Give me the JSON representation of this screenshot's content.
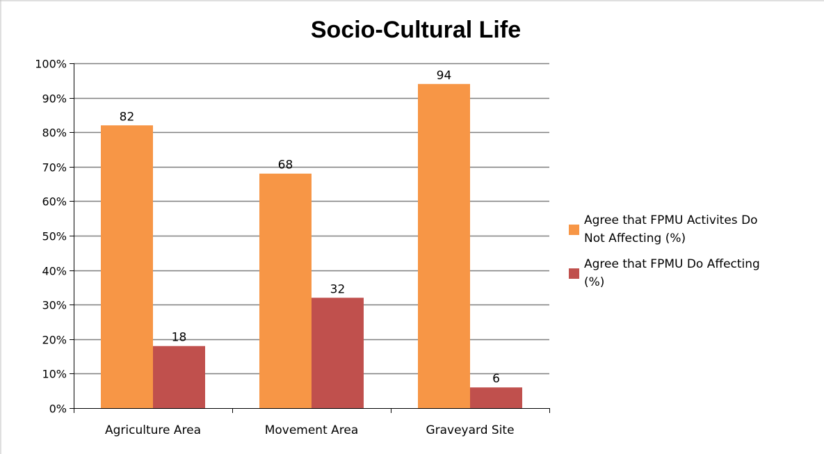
{
  "chart_data": {
    "type": "bar",
    "title": "Socio-Cultural Life",
    "xlabel": "",
    "ylabel": "",
    "categories": [
      "Agriculture Area",
      "Movement Area",
      "Graveyard Site"
    ],
    "series": [
      {
        "name": "Agree that FPMU Activites Do Not Affecting (%)",
        "legend_lines": [
          "Agree that FPMU Activites Do",
          "Not Affecting (%)"
        ],
        "color": "#f79646",
        "values": [
          82,
          68,
          94
        ],
        "labels": [
          "82",
          "68",
          "94"
        ]
      },
      {
        "name": "Agree that FPMU Do Affecting (%)",
        "legend_lines": [
          "Agree that FPMU Do Affecting",
          "(%)"
        ],
        "color": "#c0504d",
        "values": [
          18,
          32,
          6
        ],
        "labels": [
          "18",
          "32",
          "6"
        ]
      }
    ],
    "ylim": [
      0,
      100
    ],
    "yticks": [
      "0%",
      "10%",
      "20%",
      "30%",
      "40%",
      "50%",
      "60%",
      "70%",
      "80%",
      "90%",
      "100%"
    ],
    "grid": true,
    "legend_position": "right",
    "gridline_color": "#7f7f7f"
  }
}
